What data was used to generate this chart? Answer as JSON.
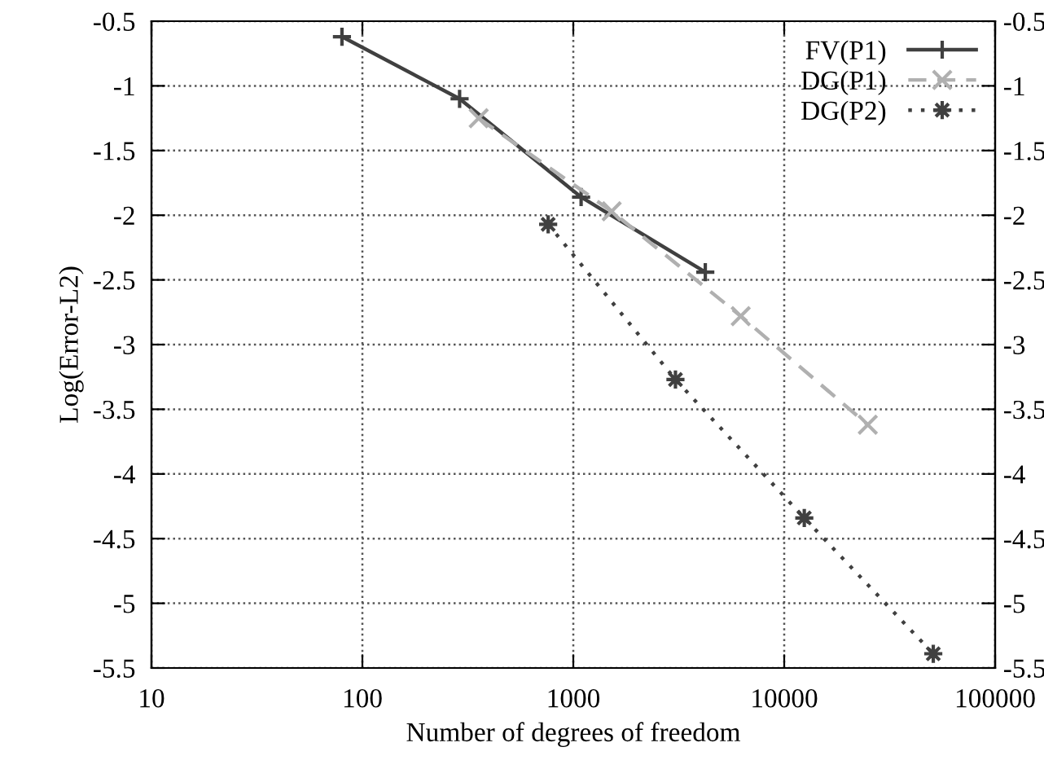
{
  "chart_data": {
    "type": "line",
    "xlabel": "Number of degrees of freedom",
    "ylabel": "Log(Error-L2)",
    "log": "x",
    "xlim": [
      10,
      100000
    ],
    "xticks": [
      10,
      100,
      1000,
      10000,
      100000
    ],
    "ylim": [
      -5.5,
      -0.5
    ],
    "yticks": [
      -5.5,
      -5,
      -4.5,
      -4,
      -3.5,
      -3,
      -2.5,
      -2,
      -1.5,
      -1,
      -0.5
    ],
    "y2lim": [
      -5.5,
      -0.5
    ],
    "y2ticks": [
      -5.5,
      -5,
      -4.5,
      -4,
      -3.5,
      -3,
      -2.5,
      -2,
      -1.5,
      -1,
      -0.5
    ],
    "grid": true,
    "legend": "top right",
    "series": [
      {
        "name": "FV(P1)",
        "color": "#404040",
        "marker": "plus",
        "line_style": "solid",
        "x": [
          80,
          289,
          1089,
          4225
        ],
        "values": [
          -0.62,
          -1.1,
          -1.86,
          -2.44
        ]
      },
      {
        "name": "DG(P1)",
        "color": "#b0b0b0",
        "marker": "cross",
        "line_style": "dashed",
        "x": [
          356,
          1520,
          6220,
          24900
        ],
        "values": [
          -1.25,
          -1.97,
          -2.78,
          -3.62
        ]
      },
      {
        "name": "DG(P2)",
        "color": "#404040",
        "marker": "star",
        "line_style": "dotted",
        "x": [
          760,
          3050,
          12450,
          50900
        ],
        "values": [
          -2.07,
          -3.27,
          -4.34,
          -5.39
        ]
      }
    ]
  }
}
